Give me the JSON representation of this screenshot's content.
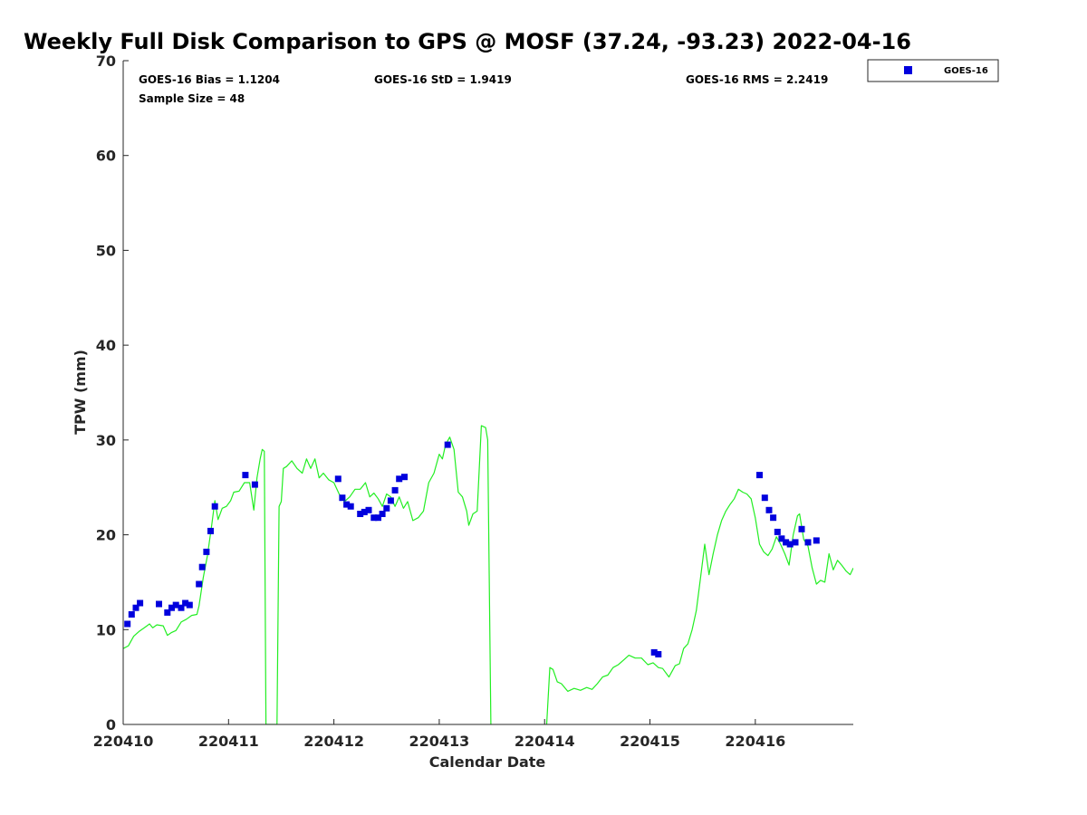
{
  "chart_data": {
    "type": "scatter",
    "title": "Weekly Full Disk Comparison to GPS @ MOSF (37.24, -93.23) 2022-04-16",
    "xlabel": "Calendar Date",
    "ylabel": "TPW (mm)",
    "xlim": [
      220410,
      220416.93
    ],
    "ylim": [
      0,
      70
    ],
    "x_ticks": [
      220410,
      220411,
      220412,
      220413,
      220414,
      220415,
      220416
    ],
    "x_tick_labels": [
      "220410",
      "220411",
      "220412",
      "220413",
      "220414",
      "220415",
      "220416"
    ],
    "y_ticks": [
      0,
      10,
      20,
      30,
      40,
      50,
      60,
      70
    ],
    "y_tick_labels": [
      "0",
      "10",
      "20",
      "30",
      "40",
      "50",
      "60",
      "70"
    ],
    "grid": false,
    "legend_position": "outside-top-right",
    "stats": {
      "bias": "GOES-16 Bias = 1.1204",
      "std": "GOES-16 StD = 1.9419",
      "rms": "GOES-16 RMS = 2.2419",
      "sample_size": "Sample Size = 48"
    },
    "series": [
      {
        "name": "GOES-16",
        "kind": "scatter",
        "color": "#0000dd",
        "marker": "square",
        "points": [
          [
            220410.04,
            10.6
          ],
          [
            220410.08,
            11.6
          ],
          [
            220410.12,
            12.3
          ],
          [
            220410.16,
            12.8
          ],
          [
            220410.34,
            12.7
          ],
          [
            220410.42,
            11.8
          ],
          [
            220410.46,
            12.3
          ],
          [
            220410.5,
            12.6
          ],
          [
            220410.55,
            12.3
          ],
          [
            220410.59,
            12.8
          ],
          [
            220410.63,
            12.6
          ],
          [
            220410.72,
            14.8
          ],
          [
            220410.75,
            16.6
          ],
          [
            220410.79,
            18.2
          ],
          [
            220410.83,
            20.4
          ],
          [
            220410.87,
            23.0
          ],
          [
            220411.16,
            26.3
          ],
          [
            220411.25,
            25.3
          ],
          [
            220412.04,
            25.9
          ],
          [
            220412.08,
            23.9
          ],
          [
            220412.12,
            23.2
          ],
          [
            220412.16,
            23.0
          ],
          [
            220412.25,
            22.2
          ],
          [
            220412.29,
            22.4
          ],
          [
            220412.33,
            22.6
          ],
          [
            220412.38,
            21.8
          ],
          [
            220412.42,
            21.8
          ],
          [
            220412.46,
            22.2
          ],
          [
            220412.5,
            22.8
          ],
          [
            220412.54,
            23.6
          ],
          [
            220412.58,
            24.7
          ],
          [
            220412.62,
            25.9
          ],
          [
            220412.67,
            26.1
          ],
          [
            220413.08,
            29.5
          ],
          [
            220415.04,
            7.6
          ],
          [
            220415.08,
            7.4
          ],
          [
            220416.04,
            26.3
          ],
          [
            220416.09,
            23.9
          ],
          [
            220416.13,
            22.6
          ],
          [
            220416.17,
            21.8
          ],
          [
            220416.21,
            20.3
          ],
          [
            220416.25,
            19.6
          ],
          [
            220416.29,
            19.2
          ],
          [
            220416.33,
            19.0
          ],
          [
            220416.38,
            19.2
          ],
          [
            220416.44,
            20.6
          ],
          [
            220416.5,
            19.2
          ],
          [
            220416.58,
            19.4
          ]
        ]
      },
      {
        "kind": "line",
        "color": "#22ee22",
        "points": [
          [
            220410.0,
            8.0
          ],
          [
            220410.05,
            8.3
          ],
          [
            220410.1,
            9.3
          ],
          [
            220410.15,
            9.8
          ],
          [
            220410.2,
            10.2
          ],
          [
            220410.25,
            10.6
          ],
          [
            220410.28,
            10.2
          ],
          [
            220410.32,
            10.5
          ],
          [
            220410.38,
            10.4
          ],
          [
            220410.42,
            9.4
          ],
          [
            220410.46,
            9.7
          ],
          [
            220410.5,
            9.9
          ],
          [
            220410.55,
            10.8
          ],
          [
            220410.6,
            11.1
          ],
          [
            220410.65,
            11.5
          ],
          [
            220410.7,
            11.6
          ],
          [
            220410.72,
            12.5
          ],
          [
            220410.76,
            15.5
          ],
          [
            220410.8,
            17.8
          ],
          [
            220410.84,
            21.0
          ],
          [
            220410.87,
            23.6
          ],
          [
            220410.9,
            21.6
          ],
          [
            220410.94,
            22.8
          ],
          [
            220410.98,
            23.0
          ],
          [
            220411.02,
            23.6
          ],
          [
            220411.05,
            24.5
          ],
          [
            220411.1,
            24.6
          ],
          [
            220411.15,
            25.5
          ],
          [
            220411.2,
            25.5
          ],
          [
            220411.24,
            22.6
          ],
          [
            220411.27,
            26.0
          ],
          [
            220411.3,
            28.0
          ],
          [
            220411.32,
            29.0
          ],
          [
            220411.34,
            28.8
          ],
          [
            220411.355,
            0.0
          ],
          [
            220411.46,
            0.0
          ],
          [
            220411.48,
            23.0
          ],
          [
            220411.5,
            23.5
          ],
          [
            220411.52,
            27.0
          ],
          [
            220411.55,
            27.2
          ],
          [
            220411.6,
            27.8
          ],
          [
            220411.65,
            27.0
          ],
          [
            220411.7,
            26.5
          ],
          [
            220411.74,
            28.0
          ],
          [
            220411.78,
            27.0
          ],
          [
            220411.82,
            28.0
          ],
          [
            220411.86,
            26.0
          ],
          [
            220411.9,
            26.5
          ],
          [
            220411.95,
            25.8
          ],
          [
            220412.0,
            25.5
          ],
          [
            220412.05,
            24.3
          ],
          [
            220412.1,
            23.5
          ],
          [
            220412.15,
            24.0
          ],
          [
            220412.2,
            24.8
          ],
          [
            220412.25,
            24.8
          ],
          [
            220412.3,
            25.5
          ],
          [
            220412.34,
            24.0
          ],
          [
            220412.38,
            24.4
          ],
          [
            220412.42,
            23.8
          ],
          [
            220412.46,
            23.0
          ],
          [
            220412.5,
            24.3
          ],
          [
            220412.54,
            24.0
          ],
          [
            220412.58,
            23.0
          ],
          [
            220412.62,
            24.0
          ],
          [
            220412.66,
            22.8
          ],
          [
            220412.7,
            23.5
          ],
          [
            220412.75,
            21.5
          ],
          [
            220412.8,
            21.8
          ],
          [
            220412.85,
            22.5
          ],
          [
            220412.9,
            25.5
          ],
          [
            220412.95,
            26.5
          ],
          [
            220413.0,
            28.5
          ],
          [
            220413.03,
            28.0
          ],
          [
            220413.06,
            29.5
          ],
          [
            220413.1,
            30.3
          ],
          [
            220413.14,
            29.0
          ],
          [
            220413.18,
            24.5
          ],
          [
            220413.22,
            24.0
          ],
          [
            220413.26,
            22.5
          ],
          [
            220413.28,
            21.0
          ],
          [
            220413.32,
            22.2
          ],
          [
            220413.36,
            22.5
          ],
          [
            220413.4,
            31.5
          ],
          [
            220413.44,
            31.3
          ],
          [
            220413.46,
            30.0
          ],
          [
            220413.49,
            0.0
          ]
        ]
      },
      {
        "kind": "line",
        "color": "#22ee22",
        "points": [
          [
            220414.02,
            0.0
          ],
          [
            220414.05,
            6.0
          ],
          [
            220414.08,
            5.8
          ],
          [
            220414.12,
            4.5
          ],
          [
            220414.16,
            4.3
          ],
          [
            220414.22,
            3.5
          ],
          [
            220414.28,
            3.8
          ],
          [
            220414.34,
            3.6
          ],
          [
            220414.4,
            3.9
          ],
          [
            220414.45,
            3.7
          ],
          [
            220414.5,
            4.3
          ],
          [
            220414.55,
            5.0
          ],
          [
            220414.6,
            5.2
          ],
          [
            220414.65,
            6.0
          ],
          [
            220414.7,
            6.3
          ],
          [
            220414.75,
            6.8
          ],
          [
            220414.8,
            7.3
          ],
          [
            220414.86,
            7.0
          ],
          [
            220414.92,
            7.0
          ],
          [
            220414.98,
            6.3
          ],
          [
            220415.03,
            6.5
          ],
          [
            220415.08,
            6.0
          ],
          [
            220415.12,
            5.9
          ],
          [
            220415.18,
            5.0
          ],
          [
            220415.24,
            6.2
          ],
          [
            220415.28,
            6.4
          ],
          [
            220415.32,
            8.0
          ],
          [
            220415.36,
            8.5
          ],
          [
            220415.4,
            10.0
          ],
          [
            220415.44,
            12.0
          ],
          [
            220415.48,
            15.5
          ],
          [
            220415.52,
            19.0
          ],
          [
            220415.56,
            15.8
          ],
          [
            220415.6,
            18.0
          ],
          [
            220415.64,
            20.0
          ],
          [
            220415.68,
            21.5
          ],
          [
            220415.72,
            22.5
          ],
          [
            220415.76,
            23.2
          ],
          [
            220415.8,
            23.8
          ],
          [
            220415.84,
            24.8
          ],
          [
            220415.88,
            24.5
          ],
          [
            220415.92,
            24.3
          ],
          [
            220415.96,
            23.8
          ],
          [
            220416.0,
            21.8
          ],
          [
            220416.04,
            19.0
          ],
          [
            220416.08,
            18.2
          ],
          [
            220416.12,
            17.8
          ],
          [
            220416.16,
            18.5
          ],
          [
            220416.2,
            19.8
          ],
          [
            220416.24,
            19.0
          ],
          [
            220416.28,
            18.0
          ],
          [
            220416.32,
            16.8
          ],
          [
            220416.36,
            20.0
          ],
          [
            220416.4,
            22.0
          ],
          [
            220416.42,
            22.2
          ],
          [
            220416.46,
            19.5
          ],
          [
            220416.5,
            18.8
          ],
          [
            220416.54,
            16.5
          ],
          [
            220416.58,
            14.8
          ],
          [
            220416.62,
            15.2
          ],
          [
            220416.66,
            15.0
          ],
          [
            220416.7,
            18.0
          ],
          [
            220416.74,
            16.3
          ],
          [
            220416.78,
            17.3
          ],
          [
            220416.82,
            16.8
          ],
          [
            220416.86,
            16.2
          ],
          [
            220416.9,
            15.8
          ],
          [
            220416.93,
            16.5
          ]
        ]
      }
    ]
  }
}
